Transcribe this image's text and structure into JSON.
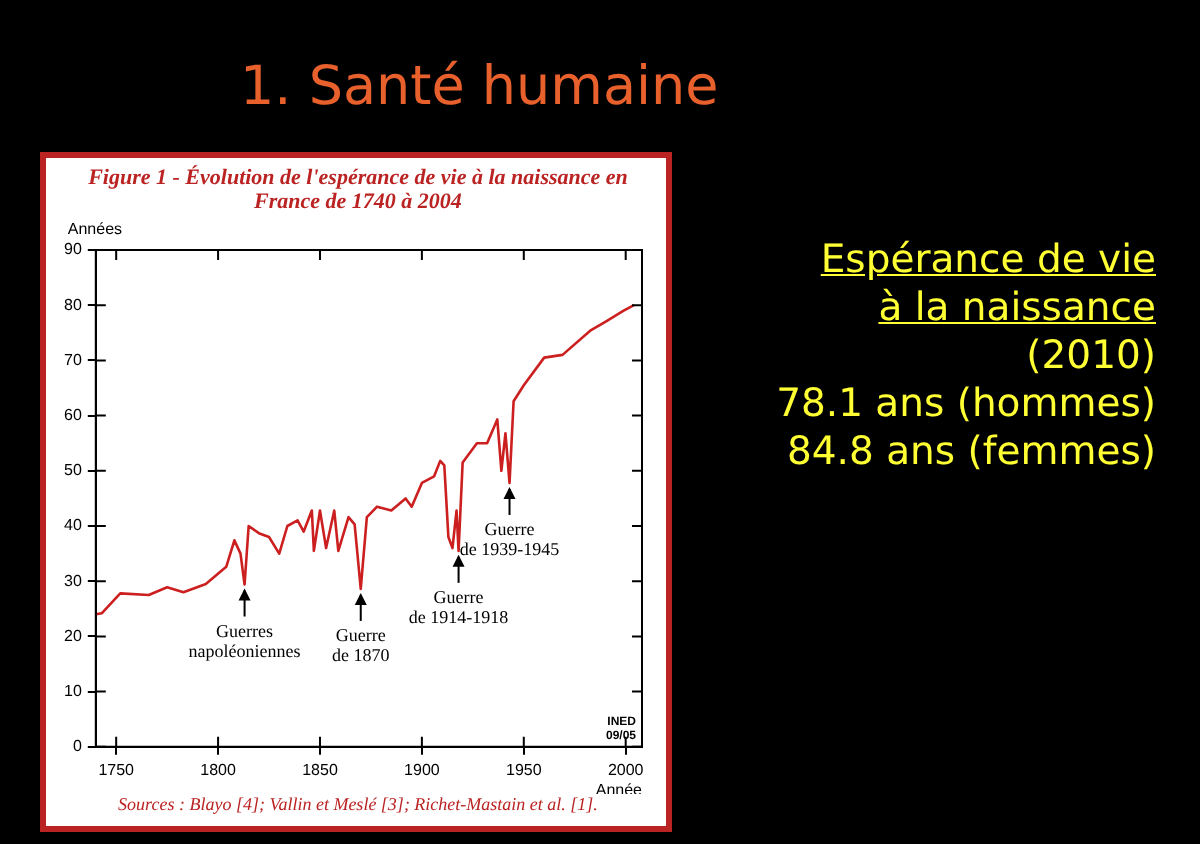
{
  "chart_data": {
    "type": "line",
    "title": "1. Santé humaine",
    "subtitle": "Figure 1 - Évolution de l'espérance de vie à la naissance en France de 1740 à 2004",
    "xlabel": "Année",
    "ylabel": "Années",
    "xlim": [
      1740,
      2008
    ],
    "xticks": [
      1750,
      1800,
      1850,
      1900,
      1950,
      2000
    ],
    "ylim": [
      0,
      90
    ],
    "yticks": [
      0,
      10,
      20,
      30,
      40,
      50,
      60,
      70,
      80,
      90
    ],
    "grid": false,
    "legend": false,
    "marker": "none",
    "line_style": "solid",
    "series": [
      {
        "color": "#cc1f1f",
        "x": [
          1740,
          1743,
          1752,
          1766,
          1775,
          1783,
          1794,
          1804,
          1808,
          1811,
          1813,
          1815,
          1820,
          1825,
          1830,
          1834,
          1839,
          1842,
          1846,
          1847,
          1850,
          1853,
          1857,
          1859,
          1864,
          1867,
          1870,
          1873,
          1878,
          1885,
          1892,
          1895,
          1900,
          1906,
          1909,
          1911,
          1913,
          1915,
          1917,
          1918,
          1920,
          1927,
          1932,
          1937,
          1939,
          1941,
          1943,
          1945,
          1950,
          1960,
          1969,
          1983,
          1990,
          1999,
          2002,
          2004
        ],
        "values": [
          24,
          24.2,
          27.8,
          27.5,
          28.9,
          28,
          29.5,
          32.6,
          37.4,
          35,
          29.4,
          40,
          38.7,
          38,
          35,
          40,
          41,
          39,
          42.8,
          35.5,
          42.8,
          36,
          42.8,
          35.5,
          41.6,
          40.3,
          28.6,
          41.6,
          43.5,
          42.8,
          45,
          43.5,
          47.8,
          49,
          51.8,
          51,
          38,
          36,
          42.8,
          35.5,
          51.5,
          55,
          55,
          59.3,
          50,
          56.8,
          47.8,
          62.6,
          65.5,
          70.5,
          71,
          75.5,
          77,
          79,
          79.6,
          80
        ]
      }
    ],
    "annotations": [
      {
        "text": "Guerres\nnapoléoniennes",
        "x": 1813,
        "y": 29.4
      },
      {
        "text": "Guerre\nde 1870",
        "x": 1870,
        "y": 28.6
      },
      {
        "text": "Guerre\nde 1914-1918",
        "x": 1918,
        "y": 35.5
      },
      {
        "text": "Guerre\nde 1939-1945",
        "x": 1943,
        "y": 47.8
      },
      "Espérance de vie",
      "à la naissance",
      "(2010)",
      "78.1 ans (hommes)",
      "84.8 ans (femmes)",
      "Sources : Blayo [4]; Vallin et Meslé [3]; Richet-Mastain et al. [1].",
      "INED\n09/05"
    ]
  }
}
